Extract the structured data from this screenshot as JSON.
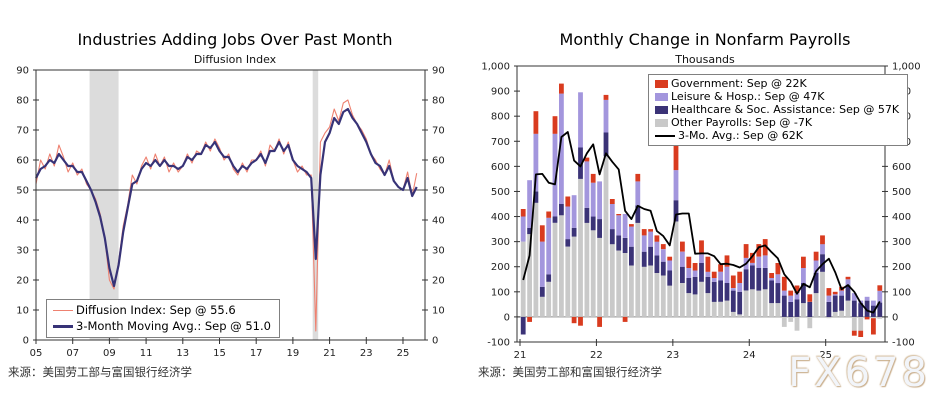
{
  "watermark": "FX678",
  "left_chart": {
    "title": "Industries Adding Jobs Over Past Month",
    "subtitle": "Diffusion Index",
    "source": "来源：美国劳工部与富国银行经济学",
    "legend": [
      {
        "label": "Diffusion Index: Sep @ 55.6",
        "color": "#ee8170",
        "swatch": "line",
        "thickness": 1.5
      },
      {
        "label": "3-Month Moving Avg.: Sep @ 51.0",
        "color": "#373377",
        "swatch": "line",
        "thickness": 3
      }
    ]
  },
  "right_chart": {
    "title": "Monthly Change in Nonfarm Payrolls",
    "subtitle": "Thousands",
    "source": "来源：美国劳工部和富国银行经济学",
    "legend": [
      {
        "label": "Government: Sep @ 22K",
        "color": "#d93b1f",
        "swatch": "rect"
      },
      {
        "label": "Leisure & Hosp.: Sep @ 47K",
        "color": "#a396dd",
        "swatch": "rect"
      },
      {
        "label": "Healthcare & Soc. Assistance: Sep @ 57K",
        "color": "#3b3377",
        "swatch": "rect"
      },
      {
        "label": "Other Payrolls: Sep @ -7K",
        "color": "#c9c9c9",
        "swatch": "rect"
      },
      {
        "label": "3-Mo. Avg.: Sep @ 62K",
        "color": "#000000",
        "swatch": "line",
        "thickness": 2
      }
    ]
  },
  "chart_data": [
    {
      "type": "line",
      "title": "Industries Adding Jobs Over Past Month",
      "ylabel": "Diffusion Index",
      "ylim": [
        0,
        90
      ],
      "ytick_step": 10,
      "x_start": 2005,
      "x_step": 0.25,
      "x_domain": [
        2005,
        2026.2
      ],
      "xticks": [
        2005,
        2007,
        2009,
        2011,
        2013,
        2015,
        2017,
        2019,
        2021,
        2023,
        2025
      ],
      "xtick_labels": [
        "05",
        "07",
        "09",
        "11",
        "13",
        "15",
        "17",
        "19",
        "21",
        "23",
        "25"
      ],
      "reference_line": 50,
      "recession_bands": [
        [
          2007.92,
          2009.5
        ],
        [
          2020.08,
          2020.38
        ]
      ],
      "grid": false,
      "legend_position": "bottom-left",
      "series": [
        {
          "name": "Diffusion Index",
          "latest": "Sep @ 55.6",
          "color": "#ee8170",
          "width": 1.1,
          "values": [
            52,
            60,
            57,
            62,
            58,
            65,
            61,
            56,
            59,
            55,
            57,
            52,
            50,
            47,
            42,
            34,
            20,
            17,
            26,
            38,
            45,
            55,
            52,
            58,
            61,
            57,
            62,
            58,
            61,
            56,
            59,
            56,
            58,
            62,
            59,
            63,
            62,
            66,
            63,
            67,
            64,
            60,
            62,
            57,
            55,
            59,
            56,
            60,
            60,
            63,
            58,
            65,
            63,
            67,
            62,
            66,
            60,
            56,
            58,
            55,
            55,
            3,
            66,
            69,
            71,
            77,
            73,
            79,
            80,
            75,
            72,
            70,
            67,
            62,
            60,
            57,
            55,
            60,
            53,
            51,
            50,
            56,
            48,
            55.6
          ]
        },
        {
          "name": "3-Month Moving Avg.",
          "latest": "Sep @ 51.0",
          "color": "#373377",
          "width": 2.2,
          "values": [
            54,
            57,
            58,
            60,
            59,
            62,
            60,
            58,
            58,
            56,
            56,
            53,
            50,
            46,
            41,
            34,
            24,
            18,
            25,
            36,
            44,
            52,
            53,
            57,
            59,
            58,
            60,
            58,
            60,
            58,
            58,
            57,
            58,
            61,
            60,
            62,
            62,
            65,
            64,
            66,
            63,
            61,
            61,
            58,
            56,
            58,
            57,
            59,
            60,
            62,
            59,
            63,
            63,
            66,
            63,
            65,
            60,
            58,
            57,
            56,
            54,
            27,
            55,
            66,
            69,
            74,
            72,
            76,
            77,
            74,
            72,
            69,
            66,
            62,
            59,
            58,
            55,
            58,
            53,
            51,
            50,
            54,
            48,
            51
          ]
        }
      ]
    },
    {
      "type": "bar",
      "title": "Monthly Change in Nonfarm Payrolls",
      "ylabel": "Thousands",
      "ylim": [
        -100,
        1000
      ],
      "ytick_step": 100,
      "months_start": "2021-01",
      "n_months": 57,
      "xticks_month_index": [
        0,
        12,
        24,
        36,
        48
      ],
      "xtick_labels": [
        "21",
        "22",
        "23",
        "24",
        "25"
      ],
      "grid": false,
      "legend_position": "top-right",
      "stack_order": [
        "Other Payrolls",
        "Healthcare & Soc. Assistance",
        "Leisure & Hosp.",
        "Government"
      ],
      "series": [
        {
          "name": "Government",
          "latest": "Sep @ 22K",
          "color": "#d93b1f",
          "role": "bar",
          "values": [
            30,
            -20,
            90,
            65,
            25,
            70,
            40,
            40,
            -25,
            -35,
            15,
            35,
            -40,
            20,
            20,
            5,
            -20,
            10,
            30,
            25,
            10,
            25,
            20,
            15,
            110,
            40,
            45,
            30,
            55,
            60,
            25,
            30,
            45,
            50,
            45,
            55,
            40,
            50,
            65,
            20,
            45,
            55,
            20,
            30,
            45,
            30,
            35,
            35,
            30,
            10,
            15,
            10,
            -20,
            -25,
            -10,
            -65,
            22
          ]
        },
        {
          "name": "Leisure & Hosp.",
          "latest": "Sep @ 47K",
          "color": "#a396dd",
          "role": "bar",
          "values": [
            100,
            190,
            230,
            180,
            225,
            330,
            440,
            130,
            130,
            220,
            185,
            135,
            150,
            130,
            100,
            80,
            95,
            80,
            95,
            65,
            60,
            55,
            50,
            40,
            120,
            60,
            40,
            25,
            35,
            20,
            15,
            35,
            65,
            10,
            35,
            45,
            10,
            45,
            50,
            10,
            35,
            20,
            25,
            25,
            60,
            0,
            50,
            40,
            25,
            5,
            20,
            25,
            30,
            10,
            15,
            20,
            47
          ]
        },
        {
          "name": "Healthcare & Soc. Assistance",
          "latest": "Sep @ 57K",
          "color": "#3b3377",
          "role": "bar",
          "values": [
            -70,
            25,
            45,
            40,
            30,
            25,
            45,
            30,
            35,
            125,
            60,
            55,
            75,
            95,
            60,
            60,
            60,
            75,
            70,
            60,
            75,
            70,
            55,
            60,
            85,
            65,
            60,
            70,
            75,
            65,
            80,
            85,
            70,
            85,
            90,
            85,
            95,
            90,
            85,
            90,
            80,
            85,
            60,
            70,
            80,
            60,
            80,
            70,
            60,
            65,
            60,
            60,
            65,
            55,
            65,
            45,
            57
          ]
        },
        {
          "name": "Other Payrolls",
          "latest": "Sep @ -7K",
          "color": "#c9c9c9",
          "role": "bar",
          "values": [
            300,
            330,
            455,
            80,
            140,
            375,
            405,
            280,
            320,
            550,
            375,
            345,
            315,
            640,
            290,
            265,
            255,
            205,
            375,
            200,
            205,
            175,
            165,
            125,
            380,
            135,
            95,
            90,
            140,
            95,
            60,
            60,
            65,
            20,
            10,
            105,
            110,
            105,
            110,
            55,
            55,
            -40,
            -20,
            -55,
            55,
            -45,
            95,
            180,
            -5,
            20,
            25,
            65,
            -55,
            -55,
            0,
            -5,
            -7
          ]
        },
        {
          "name": "3-Mo. Avg.",
          "latest": "Sep @ 62K",
          "color": "#000000",
          "role": "line",
          "width": 1.8,
          "values": [
            147,
            245,
            568,
            570,
            535,
            528,
            717,
            737,
            623,
            600,
            652,
            688,
            568,
            652,
            618,
            588,
            423,
            390,
            443,
            430,
            423,
            342,
            322,
            285,
            408,
            412,
            412,
            252,
            253,
            253,
            242,
            210,
            212,
            207,
            197,
            212,
            242,
            278,
            285,
            258,
            233,
            170,
            140,
            92,
            132,
            118,
            182,
            210,
            232,
            178,
            110,
            127,
            100,
            55,
            25,
            17,
            62
          ]
        }
      ]
    }
  ]
}
